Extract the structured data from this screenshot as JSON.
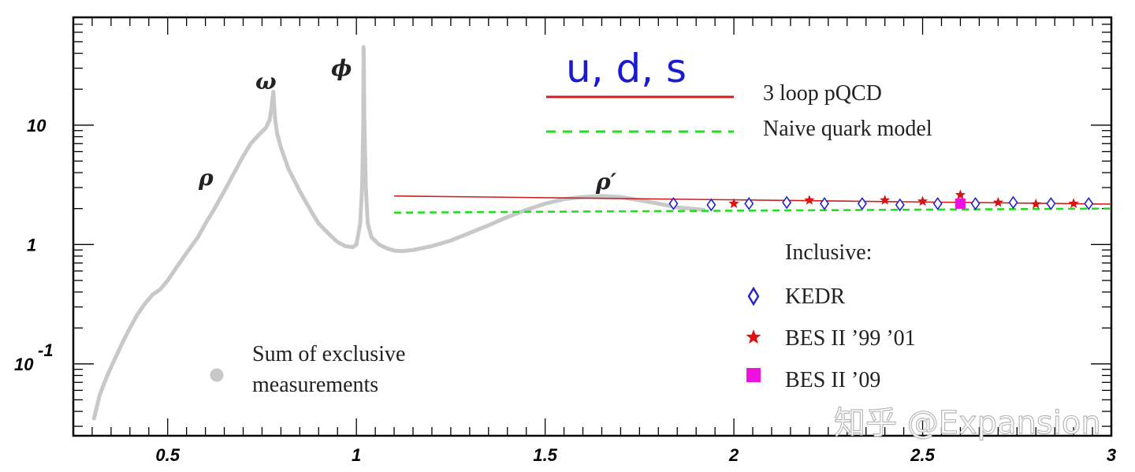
{
  "chart_data": {
    "type": "scatter",
    "title": "",
    "xlabel": "",
    "ylabel": "",
    "xlim": [
      0.25,
      3.0
    ],
    "ylim": [
      0.025,
      80
    ],
    "yscale": "log",
    "xticks": [
      0.5,
      1.0,
      1.5,
      2.0,
      2.5,
      3.0
    ],
    "xtick_labels": [
      "0.5",
      "1",
      "1.5",
      "2",
      "2.5",
      "3"
    ],
    "ytick_labels": [
      {
        "value": 0.1,
        "base": "10",
        "exp": "-1"
      },
      {
        "value": 1,
        "base": "1",
        "exp": ""
      },
      {
        "value": 10,
        "base": "10",
        "exp": ""
      }
    ],
    "annotations": {
      "rho": "ρ",
      "omega": "ω",
      "phi": "ϕ",
      "rho_prime": "ρ′",
      "flavors": "u, d, s"
    },
    "legend": {
      "pqcd": "3 loop pQCD",
      "naive": "Naive quark model",
      "inclusive_header": "Inclusive:",
      "kedr": "KEDR",
      "bes99": "BES II ’99 ’01",
      "bes09": "BES II ’09",
      "exclusive_line1": "Sum of exclusive",
      "exclusive_line2": "measurements"
    },
    "watermark": "知乎 @Expansion",
    "colors": {
      "exclusive": "#c8c8c8",
      "pqcd": "#cc1f1f",
      "naive": "#22dd22",
      "kedr": "#2222cc",
      "bes99": "#dd1111",
      "bes09": "#ee11dd"
    },
    "series": [
      {
        "name": "Sum of exclusive measurements",
        "kind": "points",
        "x": [
          0.305,
          0.32,
          0.34,
          0.36,
          0.38,
          0.4,
          0.42,
          0.44,
          0.46,
          0.48,
          0.5,
          0.52,
          0.55,
          0.58,
          0.6,
          0.62,
          0.65,
          0.68,
          0.7,
          0.72,
          0.74,
          0.76,
          0.77,
          0.775,
          0.78,
          0.782,
          0.785,
          0.79,
          0.8,
          0.82,
          0.85,
          0.88,
          0.9,
          0.93,
          0.95,
          0.97,
          0.99,
          1.0,
          1.01,
          1.015,
          1.018,
          1.019,
          1.02,
          1.021,
          1.025,
          1.03,
          1.04,
          1.06,
          1.08,
          1.1,
          1.12,
          1.15,
          1.2,
          1.25,
          1.3,
          1.35,
          1.4,
          1.45,
          1.5,
          1.55,
          1.6,
          1.65,
          1.7,
          1.75,
          1.8,
          1.85,
          1.9,
          1.92
        ],
        "y": [
          0.035,
          0.055,
          0.08,
          0.11,
          0.15,
          0.2,
          0.26,
          0.32,
          0.38,
          0.42,
          0.5,
          0.62,
          0.85,
          1.15,
          1.5,
          1.9,
          2.8,
          4.2,
          5.5,
          7.0,
          8.2,
          9.5,
          11.0,
          14.0,
          19.0,
          15.0,
          11.0,
          8.5,
          6.5,
          4.3,
          2.8,
          1.9,
          1.5,
          1.2,
          1.05,
          0.97,
          0.95,
          1.0,
          1.5,
          3.0,
          10.0,
          45.0,
          30.0,
          12.0,
          3.0,
          1.5,
          1.15,
          1.0,
          0.93,
          0.89,
          0.88,
          0.9,
          0.97,
          1.08,
          1.25,
          1.45,
          1.7,
          1.95,
          2.2,
          2.4,
          2.5,
          2.55,
          2.5,
          2.35,
          2.2,
          2.05,
          1.98,
          1.95
        ]
      },
      {
        "name": "3 loop pQCD",
        "kind": "line",
        "x": [
          1.1,
          3.0
        ],
        "y": [
          2.55,
          2.18
        ]
      },
      {
        "name": "Naive quark model",
        "kind": "dashed-line",
        "x": [
          1.1,
          3.0
        ],
        "y": [
          1.85,
          2.0
        ]
      },
      {
        "name": "KEDR",
        "kind": "open-diamond",
        "x": [
          1.84,
          1.94,
          2.04,
          2.14,
          2.24,
          2.34,
          2.44,
          2.54,
          2.64,
          2.74,
          2.84,
          2.94
        ],
        "y": [
          2.2,
          2.15,
          2.2,
          2.25,
          2.2,
          2.2,
          2.15,
          2.2,
          2.2,
          2.25,
          2.2,
          2.2
        ]
      },
      {
        "name": "BES II ’99 ’01",
        "kind": "star",
        "x": [
          2.0,
          2.2,
          2.4,
          2.5,
          2.6,
          2.7,
          2.8,
          2.9
        ],
        "y": [
          2.2,
          2.35,
          2.35,
          2.3,
          2.6,
          2.25,
          2.18,
          2.2
        ]
      },
      {
        "name": "BES II ’09",
        "kind": "square",
        "x": [
          2.6
        ],
        "y": [
          2.2
        ]
      }
    ]
  }
}
